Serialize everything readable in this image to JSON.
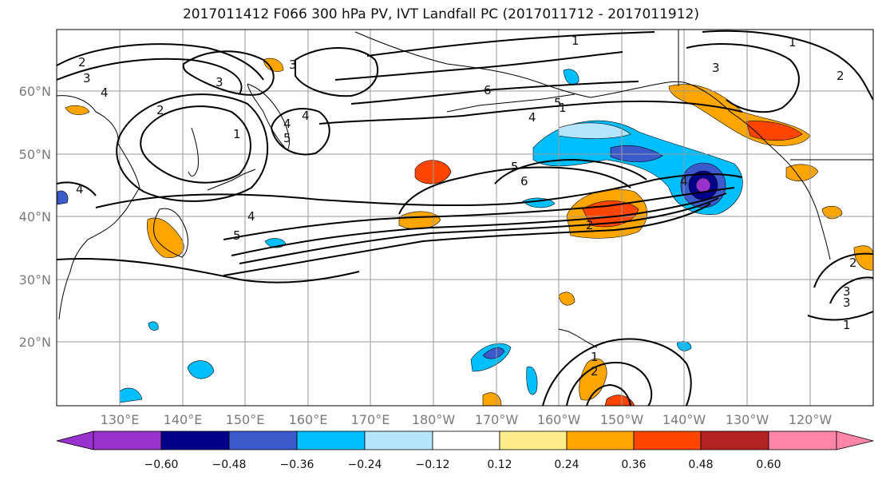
{
  "title": "2017011412 F066 300 hPa PV, IVT Landfall PC (2017011712 - 2017011912)",
  "lat_labels": [
    "60°N",
    "50°N",
    "40°N",
    "30°N",
    "20°N"
  ],
  "lon_labels": [
    "130°E",
    "140°E",
    "150°E",
    "160°E",
    "170°E",
    "180°W",
    "170°W",
    "160°W",
    "150°W",
    "140°W",
    "130°W",
    "120°W"
  ],
  "colorbar": {
    "colors": [
      "#9932cc",
      "#00008b",
      "#3b5bcc",
      "#00bfff",
      "#b3e5fc",
      "#ffffff",
      "#ffec8b",
      "#ffa500",
      "#ff4500",
      "#b22222",
      "#ff86a8"
    ],
    "tick_labels": [
      "−0.60",
      "−0.48",
      "−0.36",
      "−0.24",
      "−0.12",
      "0.12",
      "0.24",
      "0.36",
      "0.48",
      "0.60"
    ]
  },
  "pv_contour_labels": [
    "2",
    "3",
    "4",
    "3",
    "2",
    "1",
    "4",
    "5",
    "4",
    "6",
    "5",
    "4",
    "5",
    "6",
    "3",
    "4",
    "5",
    "2",
    "1",
    "2",
    "3",
    "1",
    "3",
    "4",
    "2",
    "3",
    "1",
    "4",
    "1",
    "2",
    "1"
  ]
}
